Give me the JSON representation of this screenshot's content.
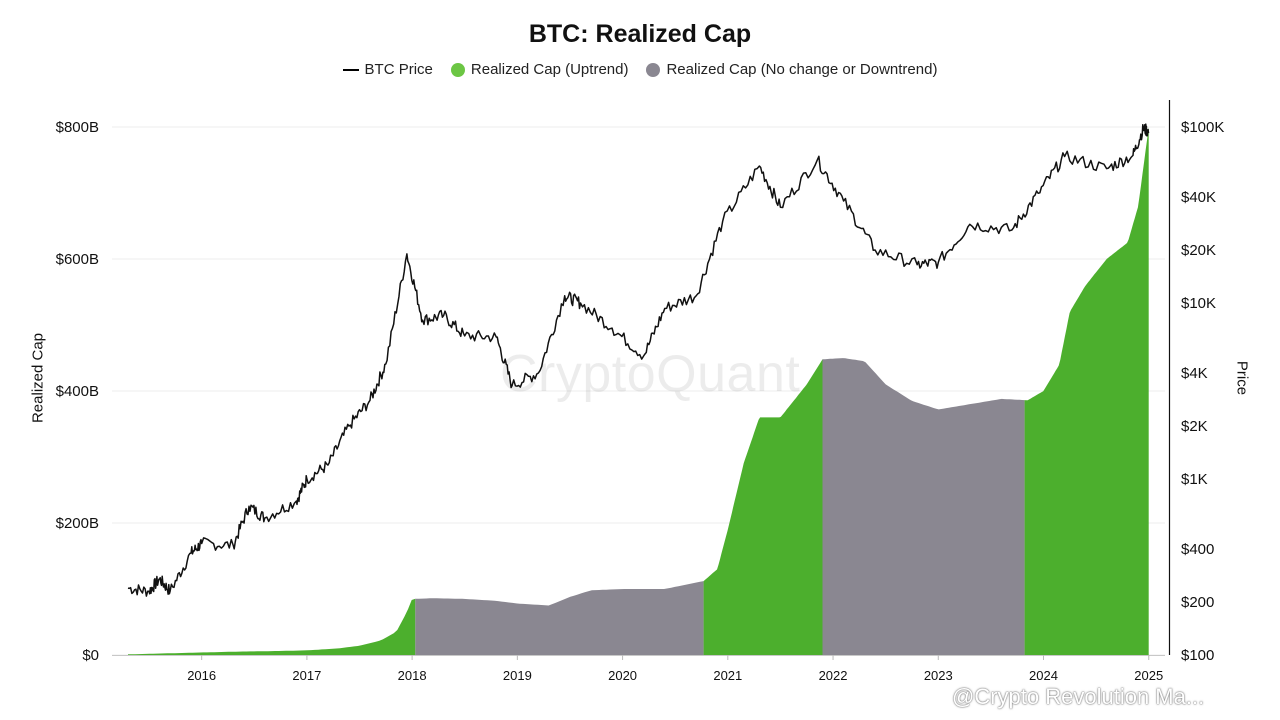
{
  "title": "BTC: Realized Cap",
  "legend": {
    "price": "BTC Price",
    "uptrend": "Realized Cap (Uptrend)",
    "downtrend": "Realized Cap (No change or Downtrend)"
  },
  "watermark": "CryptoQuant",
  "overlay_text": "@Crypto Revolution Ma...",
  "colors": {
    "uptrend": "#4caf2d",
    "downtrend": "#8a8791",
    "price": "#111111"
  },
  "chart_data": {
    "type": "area",
    "xlabel": "",
    "ylabel": "Realized Cap",
    "y2label": "Price",
    "x_ticks": [
      "2016",
      "2017",
      "2018",
      "2019",
      "2020",
      "2021",
      "2022",
      "2023",
      "2024",
      "2025"
    ],
    "y_ticks": [
      "$0",
      "$200B",
      "$400B",
      "$600B",
      "$800B"
    ],
    "y2_ticks": [
      "$100",
      "$200",
      "$400",
      "$1K",
      "$2K",
      "$4K",
      "$10K",
      "$20K",
      "$40K",
      "$100K"
    ],
    "ylim": [
      0,
      800
    ],
    "y2lim_log": [
      100,
      100000
    ],
    "x_range": [
      2015.3,
      2025.05
    ],
    "grid": true,
    "legend_position": "top",
    "realized_cap_billion": [
      [
        2015.3,
        1
      ],
      [
        2015.8,
        3
      ],
      [
        2016.3,
        5
      ],
      [
        2016.7,
        6
      ],
      [
        2017.0,
        7
      ],
      [
        2017.3,
        10
      ],
      [
        2017.5,
        14
      ],
      [
        2017.7,
        22
      ],
      [
        2017.85,
        35
      ],
      [
        2017.95,
        65
      ],
      [
        2018.0,
        85
      ],
      [
        2018.2,
        86
      ],
      [
        2018.5,
        85
      ],
      [
        2018.8,
        82
      ],
      [
        2019.0,
        78
      ],
      [
        2019.3,
        75
      ],
      [
        2019.5,
        88
      ],
      [
        2019.7,
        98
      ],
      [
        2020.0,
        100
      ],
      [
        2020.4,
        100
      ],
      [
        2020.77,
        112
      ],
      [
        2020.9,
        130
      ],
      [
        2021.0,
        190
      ],
      [
        2021.15,
        290
      ],
      [
        2021.3,
        360
      ],
      [
        2021.5,
        360
      ],
      [
        2021.75,
        410
      ],
      [
        2021.9,
        448
      ],
      [
        2022.1,
        450
      ],
      [
        2022.3,
        445
      ],
      [
        2022.5,
        410
      ],
      [
        2022.75,
        385
      ],
      [
        2023.0,
        372
      ],
      [
        2023.3,
        380
      ],
      [
        2023.6,
        388
      ],
      [
        2023.85,
        386
      ],
      [
        2024.0,
        400
      ],
      [
        2024.15,
        440
      ],
      [
        2024.25,
        520
      ],
      [
        2024.4,
        560
      ],
      [
        2024.6,
        600
      ],
      [
        2024.8,
        625
      ],
      [
        2024.9,
        680
      ],
      [
        2025.0,
        800
      ]
    ],
    "regimes": [
      {
        "state": "uptrend",
        "from": 2015.3,
        "to": 2018.03
      },
      {
        "state": "downtrend",
        "from": 2018.03,
        "to": 2020.77
      },
      {
        "state": "uptrend",
        "from": 2020.77,
        "to": 2021.9
      },
      {
        "state": "downtrend",
        "from": 2021.9,
        "to": 2023.82
      },
      {
        "state": "uptrend",
        "from": 2023.82,
        "to": 2025.0
      }
    ],
    "btc_price_usd": [
      [
        2015.3,
        240
      ],
      [
        2015.5,
        230
      ],
      [
        2015.6,
        270
      ],
      [
        2015.7,
        230
      ],
      [
        2015.9,
        380
      ],
      [
        2016.0,
        430
      ],
      [
        2016.3,
        420
      ],
      [
        2016.45,
        700
      ],
      [
        2016.6,
        600
      ],
      [
        2016.9,
        750
      ],
      [
        2017.0,
        1000
      ],
      [
        2017.2,
        1200
      ],
      [
        2017.4,
        2000
      ],
      [
        2017.6,
        2800
      ],
      [
        2017.75,
        4500
      ],
      [
        2017.95,
        19000
      ],
      [
        2018.1,
        8000
      ],
      [
        2018.3,
        8500
      ],
      [
        2018.5,
        6500
      ],
      [
        2018.8,
        6400
      ],
      [
        2018.95,
        3400
      ],
      [
        2019.2,
        4000
      ],
      [
        2019.45,
        11000
      ],
      [
        2019.6,
        10000
      ],
      [
        2019.9,
        7200
      ],
      [
        2020.2,
        5000
      ],
      [
        2020.4,
        9300
      ],
      [
        2020.7,
        11000
      ],
      [
        2020.95,
        29000
      ],
      [
        2021.3,
        60000
      ],
      [
        2021.5,
        35000
      ],
      [
        2021.85,
        65000
      ],
      [
        2022.1,
        38000
      ],
      [
        2022.4,
        20000
      ],
      [
        2022.8,
        16500
      ],
      [
        2023.0,
        17000
      ],
      [
        2023.3,
        28000
      ],
      [
        2023.7,
        26000
      ],
      [
        2023.95,
        42000
      ],
      [
        2024.2,
        68000
      ],
      [
        2024.6,
        58000
      ],
      [
        2024.85,
        69000
      ],
      [
        2024.95,
        98000
      ],
      [
        2025.0,
        94000
      ]
    ]
  }
}
